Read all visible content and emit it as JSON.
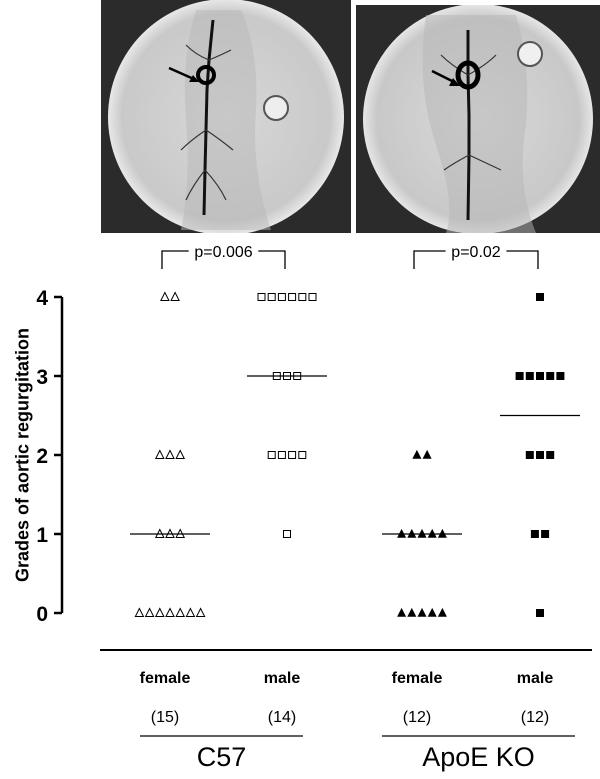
{
  "images": [
    {
      "name": "c57-angiogram"
    },
    {
      "name": "apoe-angiogram"
    }
  ],
  "chart_data": {
    "type": "scatter",
    "ylabel": "Grades of aortic regurgitation",
    "yticks": [
      0,
      1,
      2,
      3,
      4
    ],
    "ylim": [
      0,
      4
    ],
    "grid": false,
    "columns": [
      {
        "sex": "female",
        "n": "(15)",
        "marker": "open-triangle",
        "values": [
          0,
          0,
          0,
          0,
          0,
          0,
          0,
          1,
          1,
          1,
          2,
          2,
          2,
          4,
          4
        ],
        "median": 1
      },
      {
        "sex": "male",
        "n": "(14)",
        "marker": "open-square",
        "values": [
          1,
          2,
          2,
          2,
          2,
          3,
          3,
          3,
          4,
          4,
          4,
          4,
          4,
          4
        ],
        "median": 3
      },
      {
        "sex": "female",
        "n": "(12)",
        "marker": "filled-triangle",
        "values": [
          0,
          0,
          0,
          0,
          0,
          1,
          1,
          1,
          1,
          1,
          2,
          2
        ],
        "median": 1
      },
      {
        "sex": "male",
        "n": "(12)",
        "marker": "filled-square",
        "values": [
          0,
          1,
          1,
          2,
          2,
          2,
          3,
          3,
          3,
          3,
          3,
          4
        ],
        "median": 2.5
      }
    ],
    "groups": [
      {
        "label": "C57",
        "columns": [
          0,
          1
        ],
        "p_value": "p=0.006"
      },
      {
        "label": "ApoE KO",
        "columns": [
          2,
          3
        ],
        "p_value": "p=0.02"
      }
    ]
  }
}
